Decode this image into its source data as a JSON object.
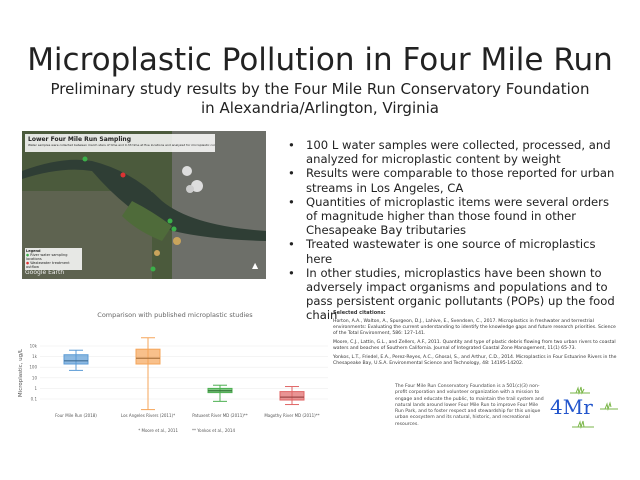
{
  "title": "Microplastic Pollution in Four Mile Run",
  "subtitle_line1": "Preliminary study results by the Four Mile Run Conservatory Foundation",
  "subtitle_line2": "in Alexandria/Arlington, Virginia",
  "map": {
    "title": "Lower Four Mile Run Sampling",
    "caption": "Water samples were collected between march stars of time and 0.33 time at five locations and analyzed for microplastic content.",
    "legend_title": "Legend",
    "legend_items": [
      {
        "label": "River water sampling locations",
        "color": "#3cb04a"
      },
      {
        "label": "Wastewater treatment outflow",
        "color": "#d33"
      }
    ],
    "watermark": "Google Earth"
  },
  "bullets": [
    "100 L water samples were collected, processed, and analyzed for microplastic content by weight",
    "Results were comparable to those reported for urban streams in Los Angeles, CA",
    "Quantities of microplastic items were several orders of magnitude higher than those found in other Chesapeake Bay tributaries",
    "Treated wastewater is one source of microplastics here",
    "In other studies, microplastics have been shown to adversely impact organisms and populations and to pass persistent organic pollutants (POPs) up the food chain"
  ],
  "chart_data": {
    "type": "box",
    "title": "Comparison with published microplastic studies",
    "ylabel": "Microplastic, ug/L",
    "yscale": "log",
    "ylim": [
      0.1,
      10000
    ],
    "yticks": [
      "0.1",
      "1",
      "10",
      "100",
      "1k",
      "10k"
    ],
    "categories": [
      "Four Mile Run (2018)",
      "Los Angeles Rivers (2011)*",
      "Patuxent River MD (2011)**",
      "Magothy River MD (2011)**"
    ],
    "series": [
      {
        "min": 50,
        "q1": 200,
        "median": 400,
        "q3": 1500,
        "max": 4000,
        "color": "#5b9bd5"
      },
      {
        "min": 0.01,
        "q1": 200,
        "median": 700,
        "q3": 5000,
        "max": 60000,
        "color": "#f5a55a"
      },
      {
        "min": 0.06,
        "q1": 0.4,
        "median": 0.6,
        "q3": 1,
        "max": 2,
        "color": "#4caf50"
      },
      {
        "min": 0.03,
        "q1": 0.08,
        "median": 0.15,
        "q3": 0.5,
        "max": 1.5,
        "color": "#e06666"
      }
    ],
    "footnotes": [
      "* Moore et al., 2011",
      "** Yonkos et al., 2014"
    ],
    "grid": true
  },
  "citations": {
    "heading": "Selected citations:",
    "items": [
      "Horton, A.A., Walton, A., Spurgeon, D.J., Lahive, E., Svendsen, C., 2017. Microplastics in freshwater and terrestrial environments: Evaluating the current understanding to identify the knowledge gaps and future research priorities. Science of the Total Environment, 586: 127–141.",
      "Moore, C.J., Lattin, G.L., and Zellers, A.F., 2011. Quantity and type of plastic debris flowing from two urban rivers to coastal waters and beaches of Southern California. Journal of Integrated Coastal Zone Management, 11(1) 65-73.",
      "Yonkos, L.T., Friedel, E.A., Perez-Reyes, A.C., Ghosal, S., and Arthur, C.D., 2014. Microplastics in Four Estuarine Rivers in the Chesapeake Bay, U.S.A. Environmental Science and Technology, 48: 14195-14202."
    ]
  },
  "about": "The Four Mile Run Conservatory Foundation is a 501(c)(3) non-profit corporation and volunteer organization with a mission to engage and educate the public, to maintain the trail system and natural lands around lower Four Mile Run to improve Four Mile Run Park, and to foster respect and stewardship for this unique urban ecosystem and its natural, historic, and recreational resources.",
  "logo_text": "4Mr"
}
